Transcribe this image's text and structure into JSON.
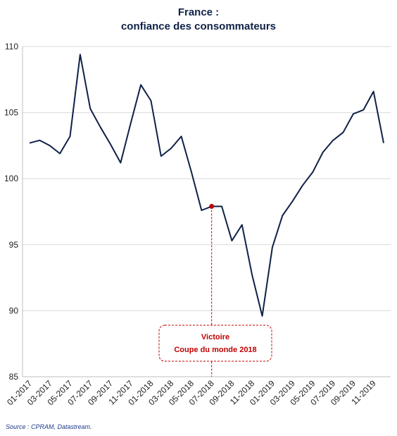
{
  "chart_data": {
    "type": "line",
    "title": [
      "France :",
      "confiance des consommateurs"
    ],
    "categories": [
      "01-2017",
      null,
      "03-2017",
      null,
      "05-2017",
      null,
      "07-2017",
      null,
      "09-2017",
      null,
      "11-2017",
      null,
      "01-2018",
      null,
      "03-2018",
      null,
      "05-2018",
      null,
      "07-2018",
      null,
      "09-2018",
      null,
      "11-2018",
      null,
      "01-2019",
      null,
      "03-2019",
      null,
      "05-2019",
      null,
      "07-2019",
      null,
      "09-2019",
      null,
      "11-2019",
      null
    ],
    "series": [
      {
        "name": "Confiance des consommateurs",
        "color": "#0f2147",
        "values": [
          102.7,
          102.9,
          102.5,
          101.9,
          103.2,
          109.4,
          105.3,
          103.9,
          102.6,
          101.2,
          104.2,
          107.1,
          105.9,
          101.7,
          102.3,
          103.2,
          100.5,
          97.6,
          97.9,
          97.9,
          95.3,
          96.5,
          92.7,
          89.6,
          94.8,
          97.2,
          98.3,
          99.5,
          100.5,
          102.0,
          102.9,
          103.5,
          104.9,
          105.2,
          106.6,
          102.7
        ]
      }
    ],
    "ylim": [
      85,
      110
    ],
    "yticks": [
      85,
      90,
      95,
      100,
      105,
      110
    ],
    "grid": true,
    "annotation": {
      "category": "07-2018",
      "color": "#c00000",
      "lines": [
        "Victoire",
        "Coupe du monde 2018"
      ]
    },
    "source": "Source : CPRAM, Datastream."
  }
}
